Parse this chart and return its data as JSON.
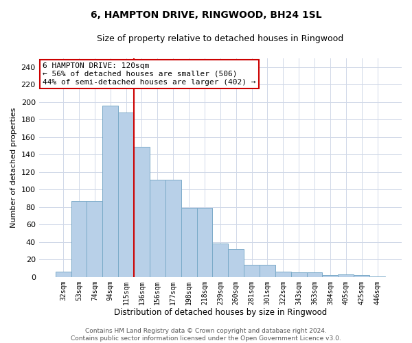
{
  "title": "6, HAMPTON DRIVE, RINGWOOD, BH24 1SL",
  "subtitle": "Size of property relative to detached houses in Ringwood",
  "xlabel": "Distribution of detached houses by size in Ringwood",
  "ylabel": "Number of detached properties",
  "categories": [
    "32sqm",
    "53sqm",
    "74sqm",
    "94sqm",
    "115sqm",
    "136sqm",
    "156sqm",
    "177sqm",
    "198sqm",
    "218sqm",
    "239sqm",
    "260sqm",
    "281sqm",
    "301sqm",
    "322sqm",
    "343sqm",
    "363sqm",
    "384sqm",
    "405sqm",
    "425sqm",
    "446sqm"
  ],
  "values": [
    6,
    87,
    87,
    196,
    188,
    149,
    111,
    111,
    79,
    79,
    38,
    32,
    14,
    14,
    6,
    5,
    5,
    2,
    3,
    2,
    1
  ],
  "bar_color": "#b8d0e8",
  "bar_edge_color": "#7aaac8",
  "red_line_x": 4.5,
  "annotation_text": "6 HAMPTON DRIVE: 120sqm\n← 56% of detached houses are smaller (506)\n44% of semi-detached houses are larger (402) →",
  "annotation_box_color": "#ffffff",
  "annotation_box_edge_color": "#cc0000",
  "vline_color": "#cc0000",
  "ylim": [
    0,
    250
  ],
  "yticks": [
    0,
    20,
    40,
    60,
    80,
    100,
    120,
    140,
    160,
    180,
    200,
    220,
    240
  ],
  "footer_line1": "Contains HM Land Registry data © Crown copyright and database right 2024.",
  "footer_line2": "Contains public sector information licensed under the Open Government Licence v3.0.",
  "background_color": "#ffffff",
  "grid_color": "#d0d8e8",
  "title_fontsize": 10,
  "subtitle_fontsize": 9,
  "ylabel_fontsize": 8,
  "xlabel_fontsize": 8.5,
  "ytick_fontsize": 8,
  "xtick_fontsize": 7,
  "annot_fontsize": 8,
  "footer_fontsize": 6.5
}
